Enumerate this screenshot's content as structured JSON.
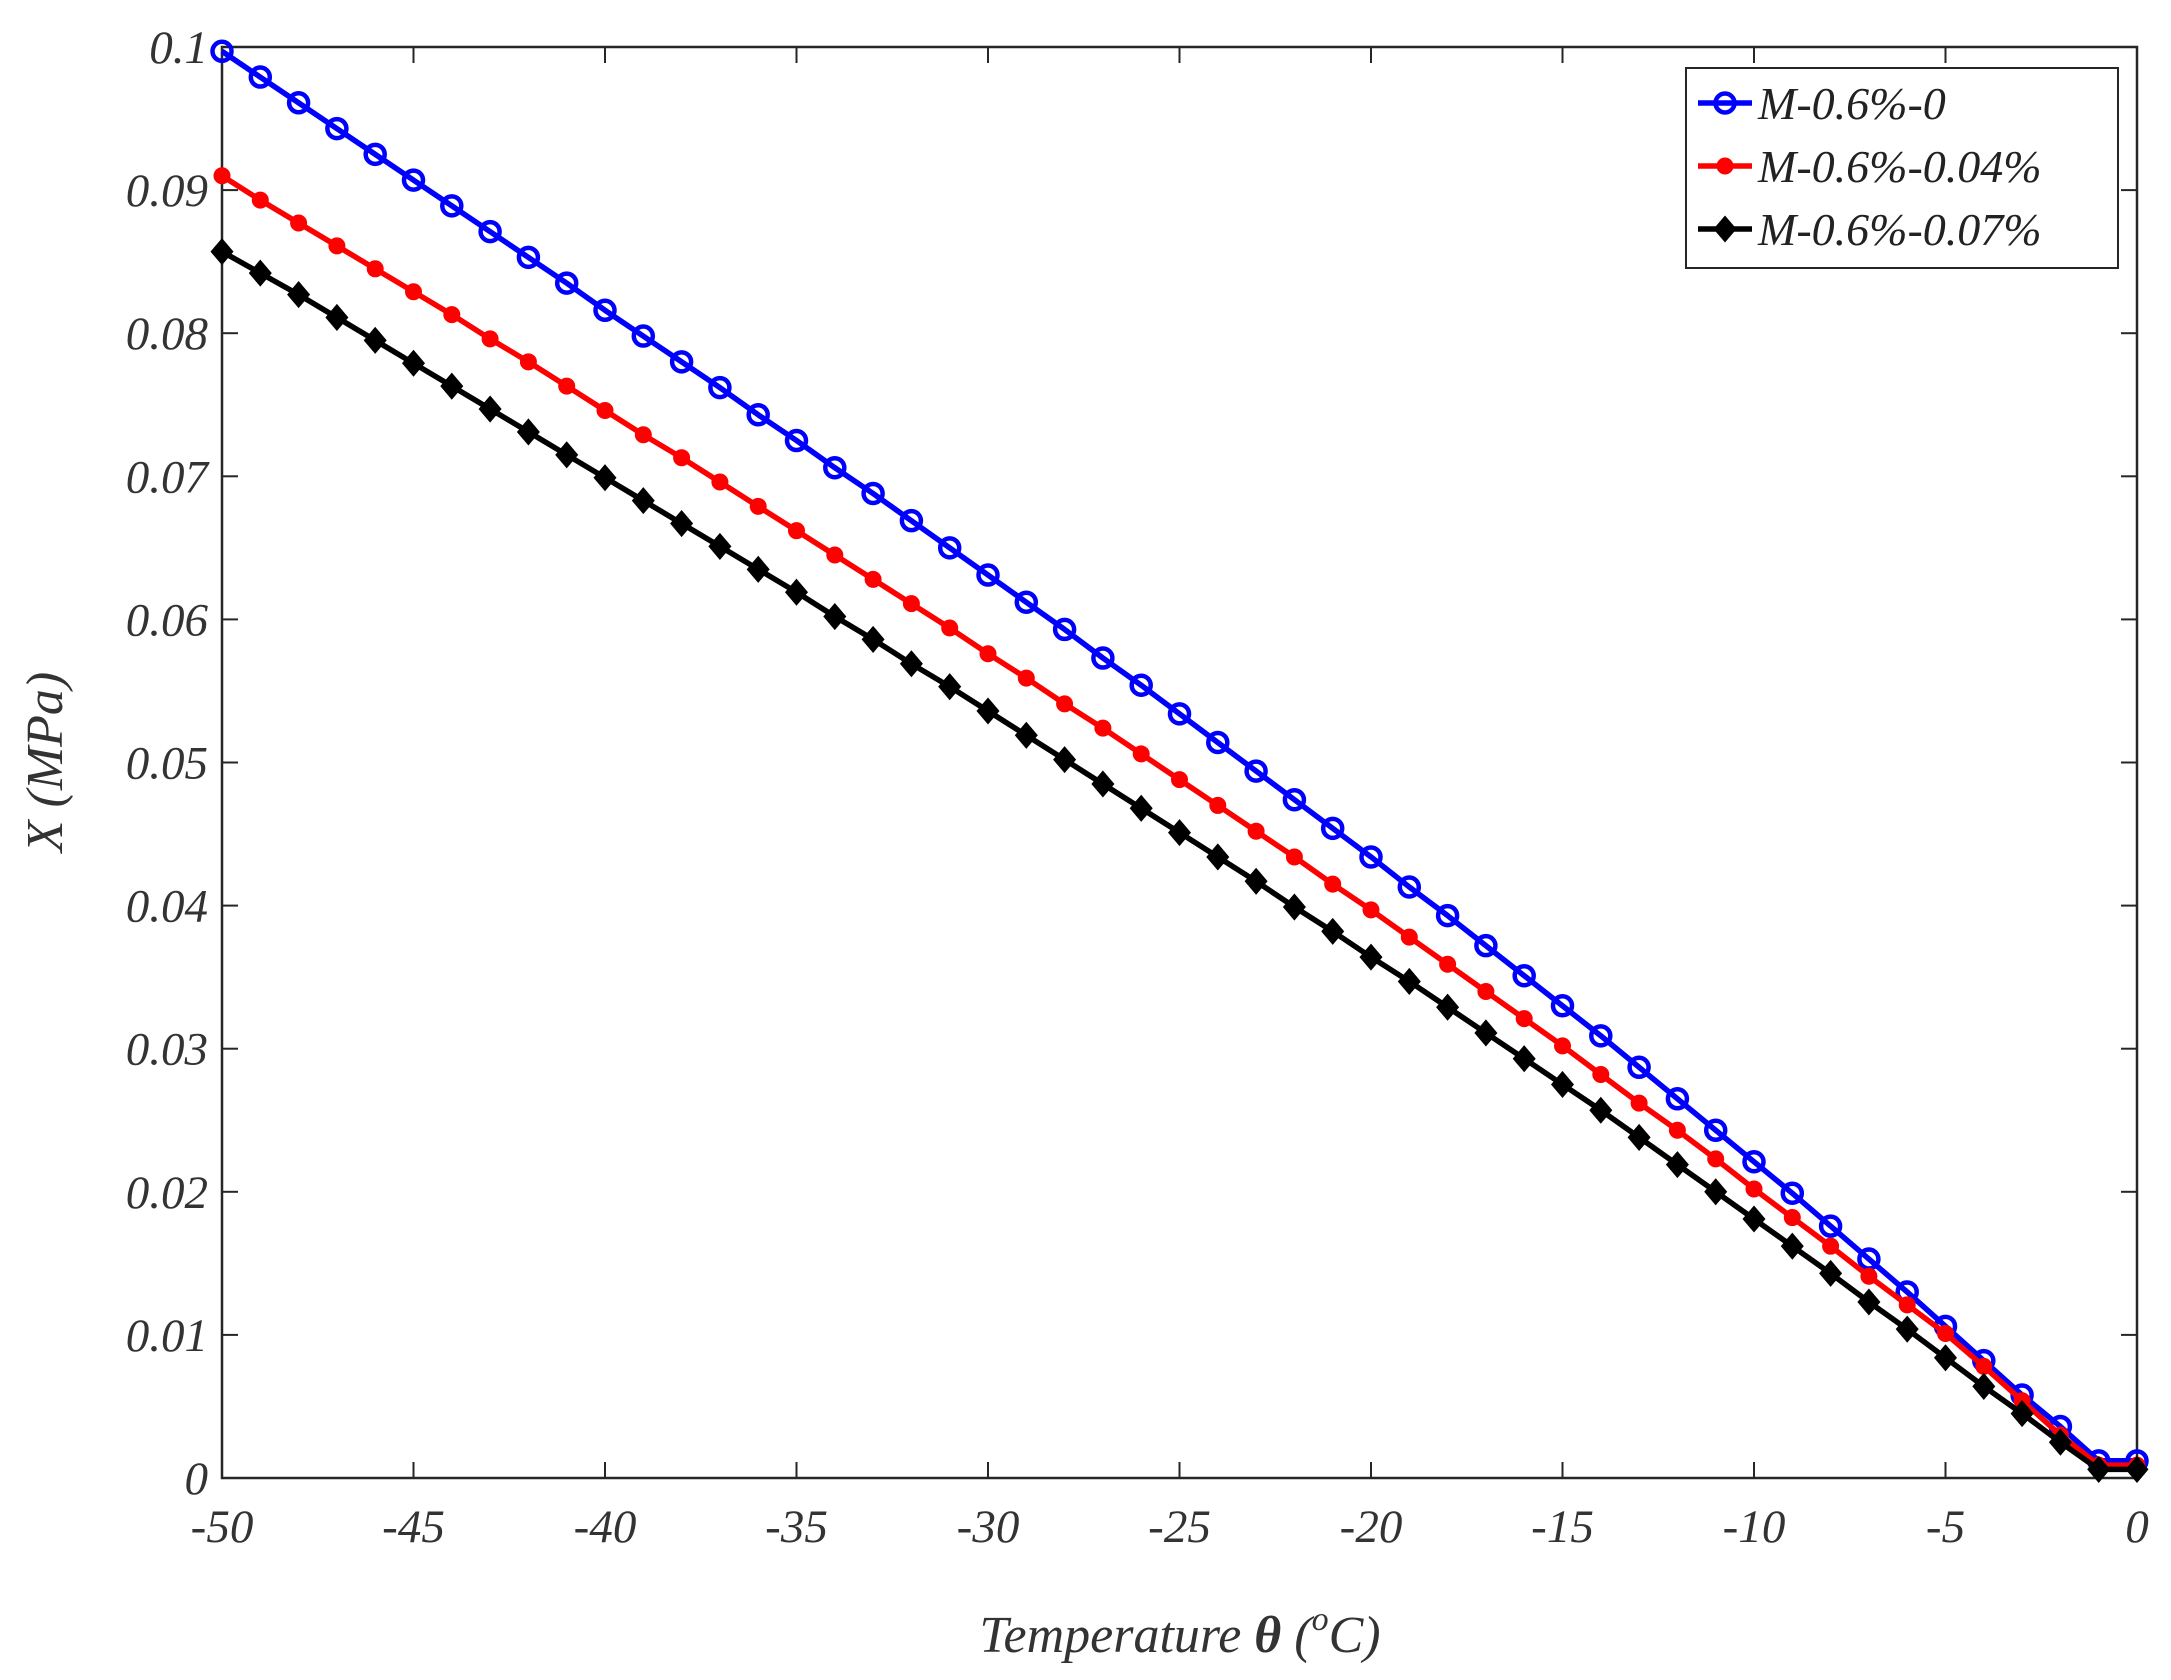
{
  "chart_data": {
    "type": "line",
    "title": "",
    "xlabel": "Temperature θ (°C)",
    "xlabel_parts": {
      "main": "Temperature ",
      "symbol": "θ",
      "open": " (",
      "sup": "o",
      "unit": "C)"
    },
    "ylabel": "X (MPa)",
    "xlim": [
      -50,
      0
    ],
    "ylim": [
      0,
      0.1
    ],
    "xticks": [
      -50,
      -45,
      -40,
      -35,
      -30,
      -25,
      -20,
      -15,
      -10,
      -5,
      0
    ],
    "xtick_labels": [
      "-50",
      "-45",
      "-40",
      "-35",
      "-30",
      "-25",
      "-20",
      "-15",
      "-10",
      "-5",
      "0"
    ],
    "yticks": [
      0,
      0.01,
      0.02,
      0.03,
      0.04,
      0.05,
      0.06,
      0.07,
      0.08,
      0.09,
      0.1
    ],
    "ytick_labels": [
      "0",
      "0.01",
      "0.02",
      "0.03",
      "0.04",
      "0.05",
      "0.06",
      "0.07",
      "0.08",
      "0.09",
      "0.1"
    ],
    "grid": false,
    "legend_position": "top-right",
    "x": [
      -50,
      -49,
      -48,
      -47,
      -46,
      -45,
      -44,
      -43,
      -42,
      -41,
      -40,
      -39,
      -38,
      -37,
      -36,
      -35,
      -34,
      -33,
      -32,
      -31,
      -30,
      -29,
      -28,
      -27,
      -26,
      -25,
      -24,
      -23,
      -22,
      -21,
      -20,
      -19,
      -18,
      -17,
      -16,
      -15,
      -14,
      -13,
      -12,
      -11,
      -10,
      -9,
      -8,
      -7,
      -6,
      -5,
      -4,
      -3,
      -2,
      -1,
      0
    ],
    "series": [
      {
        "name": "M-0.6%-0",
        "color": "#0000ff",
        "marker": "circle",
        "values": [
          0.0997,
          0.0979,
          0.0961,
          0.0943,
          0.0925,
          0.0907,
          0.0889,
          0.0871,
          0.0853,
          0.0835,
          0.0816,
          0.0798,
          0.078,
          0.0762,
          0.0743,
          0.0725,
          0.0706,
          0.0688,
          0.0669,
          0.065,
          0.0631,
          0.0612,
          0.0593,
          0.0573,
          0.0554,
          0.0534,
          0.0514,
          0.0494,
          0.0474,
          0.0454,
          0.0434,
          0.0413,
          0.0393,
          0.0372,
          0.0351,
          0.033,
          0.0309,
          0.0287,
          0.0265,
          0.0243,
          0.0221,
          0.0199,
          0.0176,
          0.0153,
          0.013,
          0.0106,
          0.0082,
          0.0058,
          0.0036,
          0.0012,
          0.0012
        ]
      },
      {
        "name": "M-0.6%-0.04%",
        "color": "#ff0000",
        "marker": "dot",
        "values": [
          0.091,
          0.0893,
          0.0877,
          0.0861,
          0.0845,
          0.0829,
          0.0813,
          0.0796,
          0.078,
          0.0763,
          0.0746,
          0.0729,
          0.0713,
          0.0696,
          0.0679,
          0.0662,
          0.0645,
          0.0628,
          0.0611,
          0.0594,
          0.0576,
          0.0559,
          0.0541,
          0.0524,
          0.0506,
          0.0488,
          0.047,
          0.0452,
          0.0434,
          0.0415,
          0.0397,
          0.0378,
          0.0359,
          0.034,
          0.0321,
          0.0302,
          0.0282,
          0.0262,
          0.0243,
          0.0223,
          0.0202,
          0.0182,
          0.0162,
          0.0141,
          0.0121,
          0.0101,
          0.0078,
          0.0054,
          0.003,
          0.0009,
          0.0009
        ]
      },
      {
        "name": "M-0.6%-0.07%",
        "color": "#000000",
        "marker": "diamond",
        "values": [
          0.0857,
          0.0842,
          0.0827,
          0.0811,
          0.0795,
          0.0779,
          0.0763,
          0.0747,
          0.0731,
          0.0715,
          0.0699,
          0.0683,
          0.0667,
          0.0651,
          0.0635,
          0.0619,
          0.0602,
          0.0586,
          0.0569,
          0.0553,
          0.0536,
          0.0519,
          0.0502,
          0.0485,
          0.0468,
          0.0451,
          0.0434,
          0.0417,
          0.0399,
          0.0382,
          0.0364,
          0.0347,
          0.0329,
          0.0311,
          0.0293,
          0.0275,
          0.0257,
          0.0238,
          0.0219,
          0.02,
          0.0181,
          0.0162,
          0.0143,
          0.0123,
          0.0104,
          0.0084,
          0.0064,
          0.0045,
          0.0025,
          0.0006,
          0.0006
        ]
      }
    ]
  }
}
